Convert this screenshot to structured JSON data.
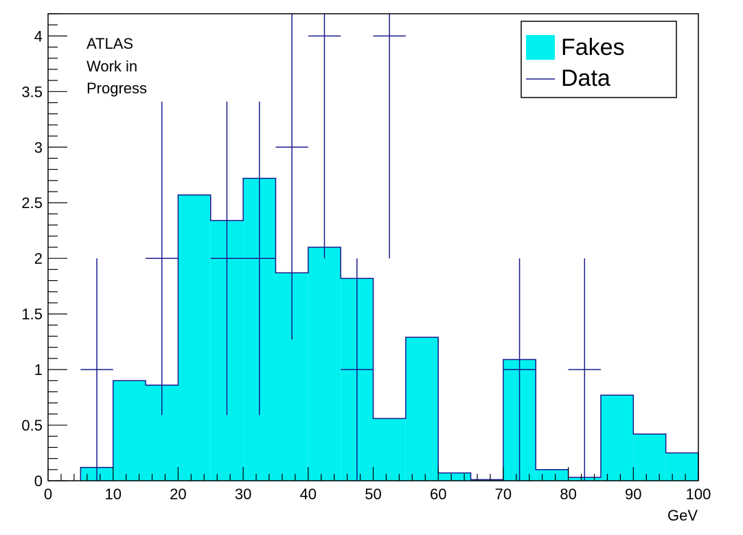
{
  "chart_data": {
    "type": "bar",
    "xlabel": "GeV",
    "ylabel": "",
    "xlim": [
      0,
      100
    ],
    "ylim": [
      0,
      4.2
    ],
    "x_ticks": [
      "0",
      "10",
      "20",
      "30",
      "40",
      "50",
      "60",
      "70",
      "80",
      "90",
      "100"
    ],
    "y_ticks": [
      "0",
      "0.5",
      "1",
      "1.5",
      "2",
      "2.5",
      "3",
      "3.5",
      "4"
    ],
    "annotation": [
      "ATLAS",
      "Work in",
      "Progress"
    ],
    "legend": {
      "placement": "top-right",
      "entries": [
        "Fakes",
        "Data"
      ]
    },
    "grid": false,
    "series": [
      {
        "name": "Fakes",
        "kind": "histogram",
        "color": "#00f0f0",
        "edge_color": "#1a1a8c",
        "bins": [
          {
            "x0": 5,
            "x1": 10,
            "y": 0.12
          },
          {
            "x0": 10,
            "x1": 15,
            "y": 0.9
          },
          {
            "x0": 15,
            "x1": 20,
            "y": 0.86
          },
          {
            "x0": 20,
            "x1": 25,
            "y": 2.57
          },
          {
            "x0": 25,
            "x1": 30,
            "y": 2.34
          },
          {
            "x0": 30,
            "x1": 35,
            "y": 2.72
          },
          {
            "x0": 35,
            "x1": 40,
            "y": 1.87
          },
          {
            "x0": 40,
            "x1": 45,
            "y": 2.1
          },
          {
            "x0": 45,
            "x1": 50,
            "y": 1.82
          },
          {
            "x0": 50,
            "x1": 55,
            "y": 0.56
          },
          {
            "x0": 55,
            "x1": 60,
            "y": 1.29
          },
          {
            "x0": 60,
            "x1": 65,
            "y": 0.07
          },
          {
            "x0": 65,
            "x1": 70,
            "y": 0.01
          },
          {
            "x0": 70,
            "x1": 75,
            "y": 1.09
          },
          {
            "x0": 75,
            "x1": 80,
            "y": 0.1
          },
          {
            "x0": 80,
            "x1": 85,
            "y": 0.03
          },
          {
            "x0": 85,
            "x1": 90,
            "y": 0.77
          },
          {
            "x0": 90,
            "x1": 95,
            "y": 0.42
          },
          {
            "x0": 95,
            "x1": 100,
            "y": 0.25
          }
        ]
      },
      {
        "name": "Data",
        "kind": "errorbar",
        "color": "#1a1a8c",
        "points": [
          {
            "x": 7.5,
            "xerr": 2.5,
            "y": 1,
            "ylow": 0,
            "yhigh": 2
          },
          {
            "x": 17.5,
            "xerr": 2.5,
            "y": 2,
            "ylow": 0.59,
            "yhigh": 3.41
          },
          {
            "x": 27.5,
            "xerr": 2.5,
            "y": 2,
            "ylow": 0.59,
            "yhigh": 3.41
          },
          {
            "x": 32.5,
            "xerr": 2.5,
            "y": 2,
            "ylow": 0.59,
            "yhigh": 3.41
          },
          {
            "x": 37.5,
            "xerr": 2.5,
            "y": 3,
            "ylow": 1.27,
            "yhigh": 4.73
          },
          {
            "x": 42.5,
            "xerr": 2.5,
            "y": 4,
            "ylow": 2,
            "yhigh": 6
          },
          {
            "x": 47.5,
            "xerr": 2.5,
            "y": 1,
            "ylow": 0,
            "yhigh": 2
          },
          {
            "x": 52.5,
            "xerr": 2.5,
            "y": 4,
            "ylow": 2,
            "yhigh": 6
          },
          {
            "x": 72.5,
            "xerr": 2.5,
            "y": 1,
            "ylow": 0,
            "yhigh": 2
          },
          {
            "x": 82.5,
            "xerr": 2.5,
            "y": 1,
            "ylow": 0,
            "yhigh": 2
          }
        ]
      }
    ]
  }
}
